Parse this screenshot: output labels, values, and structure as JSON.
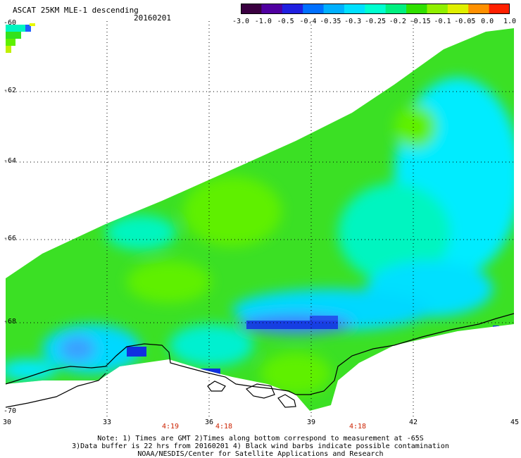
{
  "header": {
    "title": "ASCAT 25KM MLE-1 descending",
    "date": "20160201"
  },
  "colorbar": {
    "tick_labels": [
      "-3.0",
      "-1.0",
      "-0.5",
      "-0.4",
      "-0.35",
      "-0.3",
      "-0.25",
      "-0.2",
      "-0.15",
      "-0.1",
      "-0.05",
      "0.0",
      "1.0"
    ],
    "colors": [
      "#3a0040",
      "#5000a0",
      "#2020e0",
      "#0070ff",
      "#00b0ff",
      "#00e0ff",
      "#00ffd0",
      "#00f080",
      "#30e000",
      "#90f000",
      "#e0f000",
      "#ff9000",
      "#ff2000"
    ]
  },
  "axes": {
    "lat_labels": [
      "-60",
      "-62",
      "-64",
      "-66",
      "-68",
      "-70"
    ],
    "lon_labels": [
      "30",
      "33",
      "36",
      "39",
      "42",
      "45"
    ]
  },
  "pass_times": [
    "4:19",
    "4:18",
    "4:18"
  ],
  "notes": [
    "Note: 1) Times are GMT 2)Times along bottom correspond to measurement at -65S",
    "3)Data buffer is 22 hrs from 20160201 4) Black wind barbs indicate possible contamination",
    "NOAA/NESDIS/Center for Satellite Applications and Research"
  ],
  "palette": {
    "green": "#33e21c",
    "light_green": "#5ef000",
    "aqua": "#00f5c0",
    "cyan": "#00e8ff",
    "blue": "#3aa0ff",
    "deep_blue": "#1030e0",
    "yellow": "#e8f800",
    "orange": "#ff7000"
  }
}
